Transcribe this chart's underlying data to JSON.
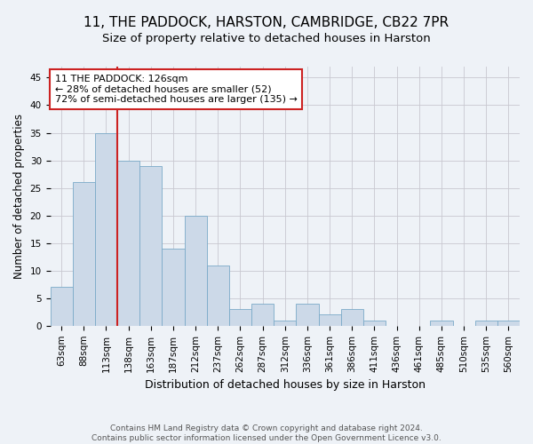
{
  "title": "11, THE PADDOCK, HARSTON, CAMBRIDGE, CB22 7PR",
  "subtitle": "Size of property relative to detached houses in Harston",
  "xlabel": "Distribution of detached houses by size in Harston",
  "ylabel": "Number of detached properties",
  "footer_line1": "Contains HM Land Registry data © Crown copyright and database right 2024.",
  "footer_line2": "Contains public sector information licensed under the Open Government Licence v3.0.",
  "bar_labels": [
    "63sqm",
    "88sqm",
    "113sqm",
    "138sqm",
    "163sqm",
    "187sqm",
    "212sqm",
    "237sqm",
    "262sqm",
    "287sqm",
    "312sqm",
    "336sqm",
    "361sqm",
    "386sqm",
    "411sqm",
    "436sqm",
    "461sqm",
    "485sqm",
    "510sqm",
    "535sqm",
    "560sqm"
  ],
  "bar_values": [
    7,
    26,
    35,
    30,
    29,
    14,
    20,
    11,
    3,
    4,
    1,
    4,
    2,
    3,
    1,
    0,
    0,
    1,
    0,
    1,
    1
  ],
  "bar_color": "#ccd9e8",
  "bar_edge_color": "#7aaac8",
  "ylim": [
    0,
    47
  ],
  "yticks": [
    0,
    5,
    10,
    15,
    20,
    25,
    30,
    35,
    40,
    45
  ],
  "vline_x": 2.5,
  "annotation_title": "11 THE PADDOCK: 126sqm",
  "annotation_line1": "← 28% of detached houses are smaller (52)",
  "annotation_line2": "72% of semi-detached houses are larger (135) →",
  "annotation_box_facecolor": "#ffffff",
  "annotation_box_edgecolor": "#cc2222",
  "vline_color": "#cc2222",
  "bg_color": "#eef2f7",
  "grid_color": "#c8c8d0",
  "title_fontsize": 11,
  "subtitle_fontsize": 9.5,
  "xlabel_fontsize": 9,
  "ylabel_fontsize": 8.5,
  "tick_fontsize": 7.5,
  "annotation_fontsize": 8,
  "footer_fontsize": 6.5
}
